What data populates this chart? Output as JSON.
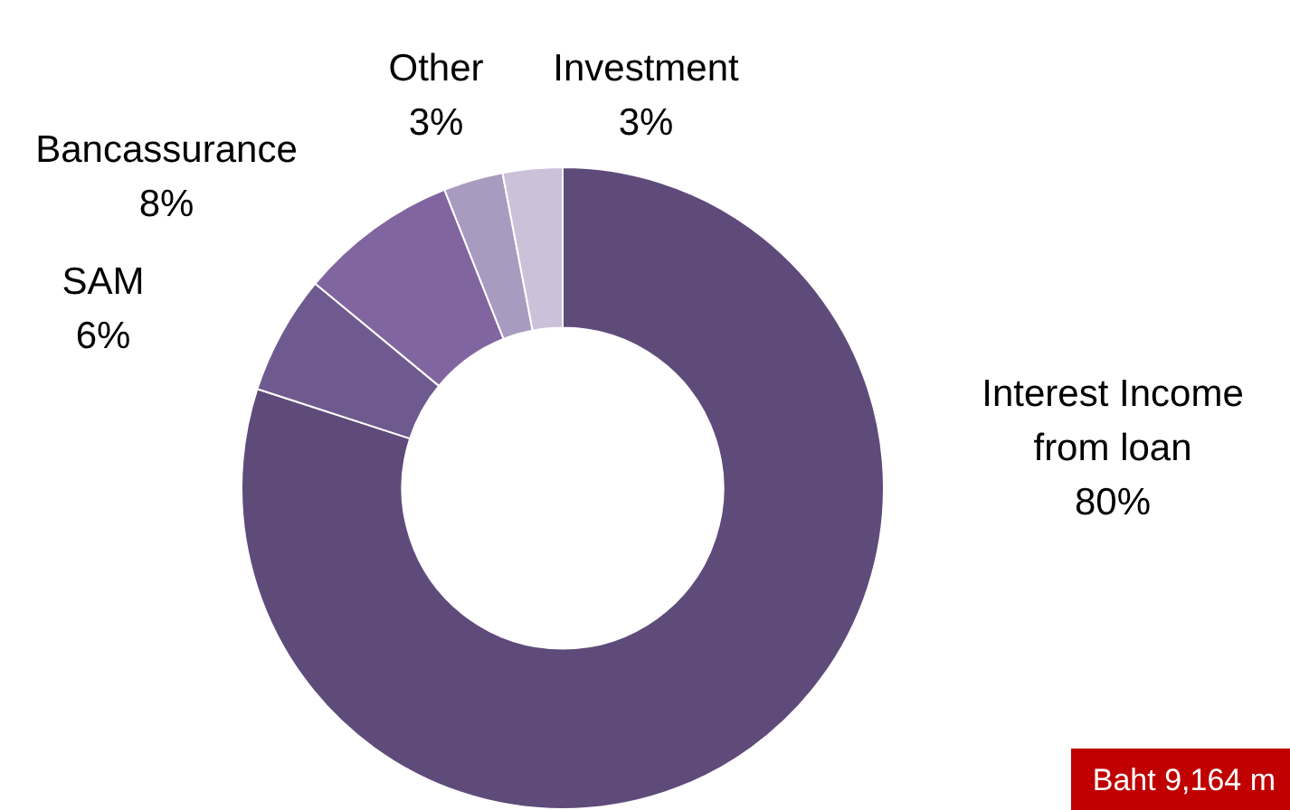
{
  "chart_data": {
    "type": "donut",
    "categories": [
      "Interest Income from loan",
      "SAM",
      "Bancassurance",
      "Other",
      "Investment"
    ],
    "values": [
      80,
      6,
      8,
      3,
      3
    ],
    "colors": [
      "#5f4b7a",
      "#6e5a8e",
      "#8165a0",
      "#a99bbf",
      "#cbc1d8"
    ],
    "value_labels": [
      "80%",
      "6%",
      "8%",
      "3%",
      "3%"
    ],
    "legend": false,
    "annotations": [
      "Baht 9,164 m"
    ]
  }
}
